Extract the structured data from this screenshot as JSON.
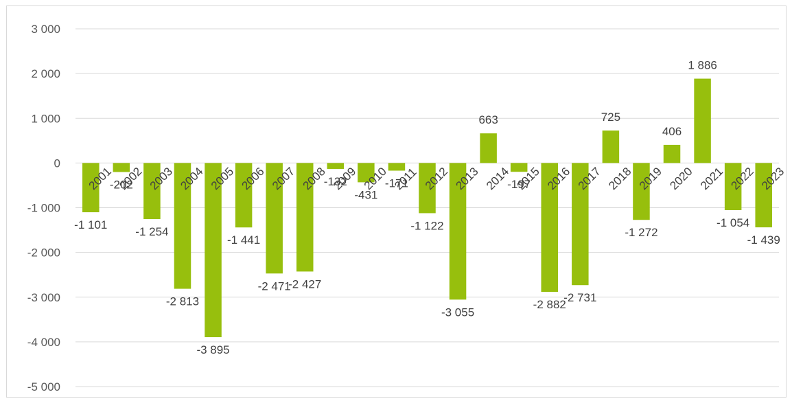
{
  "colors": {
    "bar": "#97bf0d",
    "grid": "#d9d9d9",
    "text": "#404040"
  },
  "chart_data": {
    "type": "bar",
    "title": "",
    "xlabel": "",
    "ylabel": "",
    "ylim": [
      -5000,
      3000
    ],
    "grid": true,
    "legend": "none",
    "y_ticks": [
      3000,
      2000,
      1000,
      0,
      -1000,
      -2000,
      -3000,
      -4000,
      -5000
    ],
    "y_tick_labels": [
      "3 000",
      "2 000",
      "1 000",
      "0",
      "-1 000",
      "-2 000",
      "-3 000",
      "-4 000",
      "-5 000"
    ],
    "categories": [
      "2001",
      "2002",
      "2003",
      "2004",
      "2005",
      "2006",
      "2007",
      "2008",
      "2009",
      "2010",
      "2011",
      "2012",
      "2013",
      "2014",
      "2015",
      "2016",
      "2017",
      "2018",
      "2019",
      "2020",
      "2021",
      "2022",
      "2023"
    ],
    "values": [
      -1101,
      -202,
      -1254,
      -2813,
      -3895,
      -1441,
      -2471,
      -2427,
      -132,
      -431,
      -171,
      -1122,
      -3055,
      663,
      -197,
      -2882,
      -2731,
      725,
      -1272,
      406,
      1886,
      -1054,
      -1439
    ],
    "data_labels": [
      "-1 101",
      "-202",
      "-1 254",
      "-2 813",
      "-3 895",
      "-1 441",
      "-2 471",
      "-2 427",
      "-132",
      "-431",
      "-171",
      "-1 122",
      "-3 055",
      "663",
      "-197",
      "-2 882",
      "-2 731",
      "725",
      "-1 272",
      "406",
      "1 886",
      "-1 054",
      "-1 439"
    ]
  }
}
